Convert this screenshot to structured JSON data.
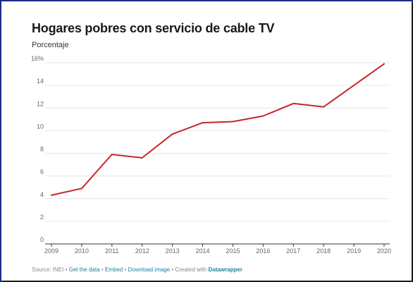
{
  "chart_data": {
    "type": "line",
    "title": "Hogares pobres con servicio de cable TV",
    "subtitle": "Porcentaje",
    "xlabel": "",
    "ylabel": "",
    "x": [
      "2009",
      "2010",
      "2011",
      "2012",
      "2013",
      "2014",
      "2015",
      "2016",
      "2017",
      "2018",
      "2019",
      "2020"
    ],
    "series": [
      {
        "values": [
          4.3,
          4.9,
          7.9,
          7.6,
          9.7,
          10.7,
          10.8,
          11.3,
          12.4,
          12.1,
          14.0,
          15.9
        ]
      }
    ],
    "y_ticks": [
      "0",
      "2",
      "4",
      "6",
      "8",
      "10",
      "12",
      "14",
      "16%"
    ],
    "y_tick_values": [
      0,
      2,
      4,
      6,
      8,
      10,
      12,
      14,
      16
    ],
    "ylim": [
      0,
      16
    ],
    "grid": true,
    "line_color": "#c62828"
  },
  "footer": {
    "source": "Source: INEI",
    "sep": " • ",
    "get_data": "Get the data",
    "embed": "Embed",
    "download": "Download image",
    "created": "Created with",
    "brand": "Datawrapper"
  }
}
